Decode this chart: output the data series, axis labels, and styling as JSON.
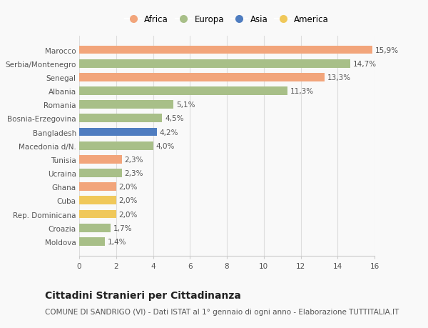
{
  "countries": [
    "Marocco",
    "Serbia/Montenegro",
    "Senegal",
    "Albania",
    "Romania",
    "Bosnia-Erzegovina",
    "Bangladesh",
    "Macedonia d/N.",
    "Tunisia",
    "Ucraina",
    "Ghana",
    "Cuba",
    "Rep. Dominicana",
    "Croazia",
    "Moldova"
  ],
  "values": [
    15.9,
    14.7,
    13.3,
    11.3,
    5.1,
    4.5,
    4.2,
    4.0,
    2.3,
    2.3,
    2.0,
    2.0,
    2.0,
    1.7,
    1.4
  ],
  "labels": [
    "15,9%",
    "14,7%",
    "13,3%",
    "11,3%",
    "5,1%",
    "4,5%",
    "4,2%",
    "4,0%",
    "2,3%",
    "2,3%",
    "2,0%",
    "2,0%",
    "2,0%",
    "1,7%",
    "1,4%"
  ],
  "continents": [
    "Africa",
    "Europa",
    "Africa",
    "Europa",
    "Europa",
    "Europa",
    "Asia",
    "Europa",
    "Africa",
    "Europa",
    "Africa",
    "America",
    "America",
    "Europa",
    "Europa"
  ],
  "colors": {
    "Africa": "#F2A57B",
    "Europa": "#A8BF88",
    "Asia": "#4F7DC0",
    "America": "#F0C85A"
  },
  "legend_order": [
    "Africa",
    "Europa",
    "Asia",
    "America"
  ],
  "xlim": [
    0,
    16
  ],
  "xticks": [
    0,
    2,
    4,
    6,
    8,
    10,
    12,
    14,
    16
  ],
  "title": "Cittadini Stranieri per Cittadinanza",
  "subtitle": "COMUNE DI SANDRIGO (VI) - Dati ISTAT al 1° gennaio di ogni anno - Elaborazione TUTTITALIA.IT",
  "background_color": "#f9f9f9",
  "bar_height": 0.62,
  "label_fontsize": 7.5,
  "tick_fontsize": 7.5,
  "title_fontsize": 10,
  "subtitle_fontsize": 7.5
}
